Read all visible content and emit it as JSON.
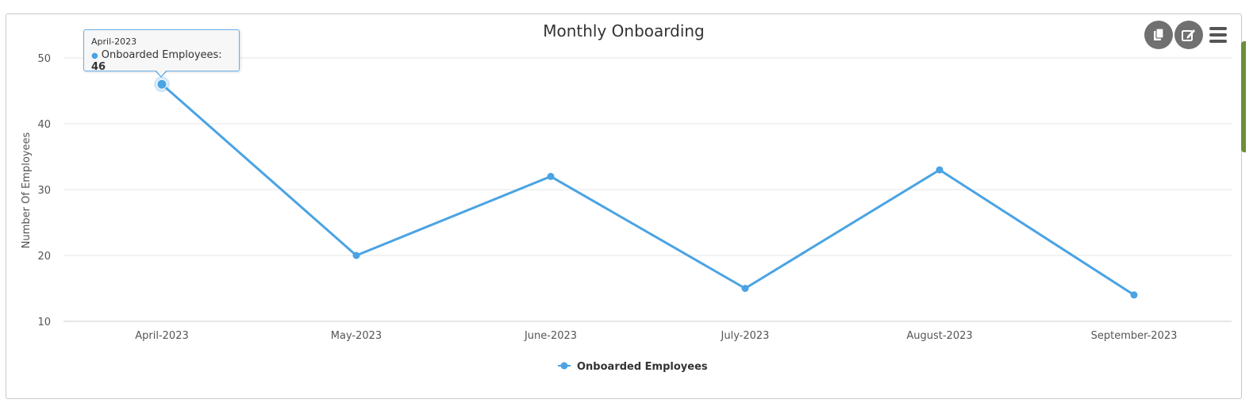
{
  "chart_data": {
    "type": "line",
    "title": "Monthly Onboarding",
    "xlabel": "",
    "ylabel": "Number Of Employees",
    "categories": [
      "April-2023",
      "May-2023",
      "June-2023",
      "July-2023",
      "August-2023",
      "September-2023"
    ],
    "series": [
      {
        "name": "Onboarded Employees",
        "values": [
          46,
          20,
          32,
          15,
          33,
          14
        ],
        "color": "#4aa3e3"
      }
    ],
    "ylim": [
      10,
      50
    ],
    "yticks": [
      "10",
      "20",
      "30",
      "40",
      "50"
    ],
    "grid": true,
    "legend_position": "bottom-center"
  },
  "tooltip": {
    "date": "April-2023",
    "series_label": "Onboarded Employees:",
    "value": "46"
  },
  "toolbar": {
    "copy_icon": "copy-icon",
    "edit_icon": "edit-icon",
    "menu_icon": "hamburger-menu-icon"
  }
}
